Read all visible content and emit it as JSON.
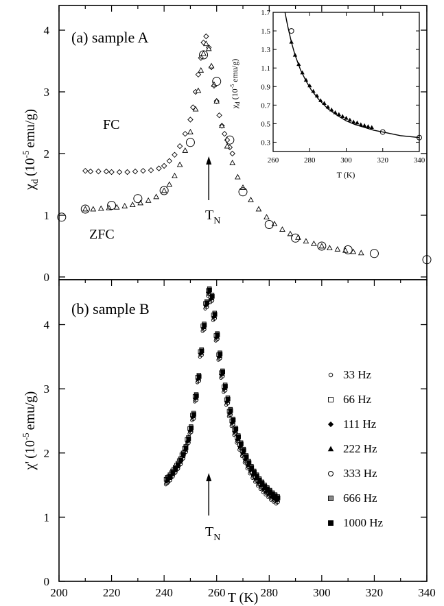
{
  "chart_data": [
    {
      "type": "scatter",
      "panel_label": "(a) sample A",
      "xlabel": "",
      "ylabel_main": "χ",
      "ylabel_sub": "d",
      "ylabel_unit": "(10",
      "ylabel_exp": "-5",
      "ylabel_tail": "emu/g)",
      "xlim": [
        200,
        340
      ],
      "ylim": [
        0,
        4.4
      ],
      "yticks": [
        "0",
        "1",
        "2",
        "3",
        "4"
      ],
      "annotations": {
        "fc": "FC",
        "zfc": "ZFC",
        "tn_main": "T",
        "tn_sub": "N",
        "tn_x": 257
      },
      "series": [
        {
          "name": "FC",
          "marker": "diamond",
          "x": [
            210,
            212,
            215,
            218,
            220,
            223,
            226,
            229,
            232,
            235,
            238,
            240,
            242,
            244,
            246,
            248,
            250,
            251,
            252,
            253,
            254,
            255,
            256,
            257,
            258,
            259,
            260,
            261,
            262,
            263,
            264,
            265,
            266
          ],
          "y": [
            1.72,
            1.71,
            1.71,
            1.71,
            1.7,
            1.7,
            1.7,
            1.71,
            1.72,
            1.73,
            1.76,
            1.8,
            1.88,
            1.98,
            2.12,
            2.32,
            2.55,
            2.75,
            3.0,
            3.28,
            3.55,
            3.8,
            3.9,
            3.72,
            3.4,
            3.1,
            2.85,
            2.62,
            2.45,
            2.32,
            2.22,
            2.1,
            2.0
          ]
        },
        {
          "name": "ZFC",
          "marker": "triangle",
          "x": [
            210,
            213,
            216,
            219,
            222,
            225,
            228,
            231,
            234,
            237,
            240,
            242,
            244,
            246,
            248,
            250,
            252,
            253,
            254,
            255,
            256,
            257,
            258,
            259,
            260,
            262,
            264,
            266,
            268,
            270,
            273,
            276,
            279,
            282,
            285,
            288,
            291,
            294,
            297,
            300,
            303,
            306,
            309,
            312,
            315
          ],
          "y": [
            1.1,
            1.1,
            1.11,
            1.12,
            1.13,
            1.15,
            1.17,
            1.2,
            1.24,
            1.3,
            1.4,
            1.5,
            1.64,
            1.82,
            2.05,
            2.35,
            2.72,
            3.02,
            3.35,
            3.62,
            3.78,
            3.7,
            3.42,
            3.12,
            2.85,
            2.45,
            2.12,
            1.85,
            1.62,
            1.45,
            1.25,
            1.1,
            0.97,
            0.86,
            0.77,
            0.7,
            0.64,
            0.58,
            0.54,
            0.5,
            0.47,
            0.45,
            0.43,
            0.41,
            0.39
          ]
        },
        {
          "name": "open circles",
          "marker": "circle",
          "x": [
            201,
            210,
            220,
            230,
            240,
            250,
            255,
            260,
            265,
            270,
            280,
            290,
            300,
            310,
            320,
            340
          ],
          "y": [
            0.97,
            1.1,
            1.16,
            1.27,
            1.4,
            2.18,
            3.6,
            3.17,
            2.22,
            1.38,
            0.85,
            0.63,
            0.5,
            0.44,
            0.38,
            0.28
          ]
        }
      ],
      "inset": {
        "xlabel": "T (K)",
        "ylabel_main": "χ",
        "ylabel_sub": "d",
        "ylabel_unit": "(10",
        "ylabel_exp": "-5",
        "ylabel_tail": "emu/g)",
        "xlim": [
          260,
          340
        ],
        "ylim": [
          0.2,
          1.7
        ],
        "xticks": [
          "260",
          "280",
          "300",
          "320",
          "340"
        ],
        "yticks": [
          "0.3",
          "0.5",
          "0.7",
          "0.9",
          "1.1",
          "1.3",
          "1.5",
          "1.7"
        ],
        "curve": {
          "x": [
            266.5,
            268,
            270,
            272,
            275,
            278,
            281,
            285,
            290,
            295,
            300,
            305,
            310,
            315,
            320,
            325,
            330,
            335,
            340
          ],
          "y": [
            1.7,
            1.55,
            1.38,
            1.24,
            1.08,
            0.96,
            0.86,
            0.76,
            0.66,
            0.59,
            0.53,
            0.49,
            0.46,
            0.43,
            0.41,
            0.39,
            0.37,
            0.36,
            0.35
          ]
        },
        "points": {
          "x": [
            270,
            272,
            274,
            276,
            278,
            280,
            282,
            284,
            286,
            288,
            290,
            292,
            294,
            296,
            298,
            300,
            302,
            304,
            306,
            308,
            310,
            312,
            314
          ],
          "y": [
            1.38,
            1.24,
            1.14,
            1.05,
            0.97,
            0.91,
            0.85,
            0.8,
            0.75,
            0.72,
            0.68,
            0.65,
            0.62,
            0.6,
            0.58,
            0.56,
            0.54,
            0.52,
            0.51,
            0.49,
            0.48,
            0.47,
            0.46
          ]
        },
        "circles": {
          "x": [
            270,
            320,
            340
          ],
          "y": [
            1.5,
            0.41,
            0.35
          ]
        }
      }
    },
    {
      "type": "scatter",
      "panel_label": "(b) sample B",
      "xlabel": "T (K)",
      "ylabel_main": "χ'",
      "ylabel_unit": "(10",
      "ylabel_exp": "-5",
      "ylabel_tail": "emu/g)",
      "xlim": [
        200,
        340
      ],
      "ylim": [
        0,
        4.7
      ],
      "xticks": [
        "200",
        "220",
        "240",
        "260",
        "280",
        "300",
        "320",
        "340"
      ],
      "yticks": [
        "0",
        "1",
        "2",
        "3",
        "4"
      ],
      "annotations": {
        "tn_main": "T",
        "tn_sub": "N",
        "tn_x": 257
      },
      "curve": {
        "x": [
          241,
          242,
          243,
          244,
          245,
          246,
          247,
          248,
          249,
          250,
          251,
          252,
          253,
          254,
          255,
          256,
          257,
          258,
          259,
          260,
          261,
          262,
          263,
          264,
          265,
          266,
          267,
          268,
          269,
          270,
          271,
          272,
          273,
          274,
          275,
          276,
          277,
          278,
          279,
          280,
          281,
          282,
          283
        ],
        "y": [
          1.56,
          1.6,
          1.66,
          1.72,
          1.78,
          1.85,
          1.94,
          2.04,
          2.18,
          2.35,
          2.56,
          2.85,
          3.15,
          3.55,
          3.95,
          4.3,
          4.5,
          4.4,
          4.12,
          3.8,
          3.5,
          3.22,
          3.0,
          2.8,
          2.62,
          2.47,
          2.33,
          2.21,
          2.1,
          2.0,
          1.9,
          1.81,
          1.73,
          1.66,
          1.6,
          1.54,
          1.49,
          1.44,
          1.4,
          1.36,
          1.32,
          1.29,
          1.26
        ]
      },
      "series": [
        {
          "name": "33 Hz",
          "marker": "circle-small",
          "offset": -0.05
        },
        {
          "name": "66 Hz",
          "marker": "square-open",
          "offset": 0.03
        },
        {
          "name": "111 Hz",
          "marker": "diamond-filled",
          "offset": 0.0
        },
        {
          "name": "222 Hz",
          "marker": "triangle-filled",
          "offset": 0.01
        },
        {
          "name": "333 Hz",
          "marker": "circle-open",
          "offset": -0.02
        },
        {
          "name": "666 Hz",
          "marker": "square-hatched",
          "offset": 0.06
        },
        {
          "name": "1000 Hz",
          "marker": "square-filled",
          "offset": 0.04
        }
      ]
    }
  ]
}
